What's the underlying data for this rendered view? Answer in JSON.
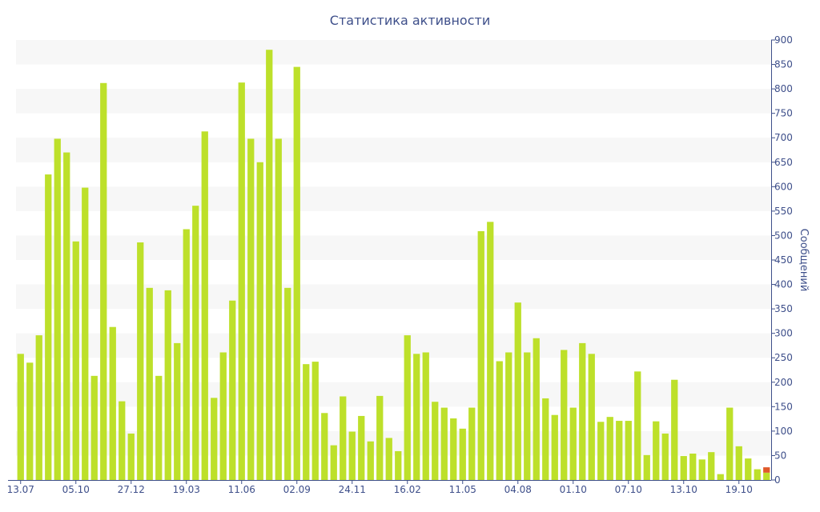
{
  "chart_data": {
    "type": "bar",
    "title": "Статистика активности",
    "ylabel": "Сообщений",
    "xlabel": "",
    "ylim": [
      0,
      900
    ],
    "y_ticks": [
      0,
      50,
      100,
      150,
      200,
      250,
      300,
      350,
      400,
      450,
      500,
      550,
      600,
      650,
      700,
      750,
      800,
      850,
      900
    ],
    "grid": "horizontal bands",
    "x_tick_labels": [
      {
        "index": 0,
        "label": "13.07"
      },
      {
        "index": 6,
        "label": "05.10"
      },
      {
        "index": 12,
        "label": "27.12"
      },
      {
        "index": 18,
        "label": "19.03"
      },
      {
        "index": 24,
        "label": "11.06"
      },
      {
        "index": 30,
        "label": "02.09"
      },
      {
        "index": 36,
        "label": "24.11"
      },
      {
        "index": 42,
        "label": "16.02"
      },
      {
        "index": 48,
        "label": "11.05"
      },
      {
        "index": 54,
        "label": "04.08"
      },
      {
        "index": 60,
        "label": "01.10"
      },
      {
        "index": 66,
        "label": "07.10"
      },
      {
        "index": 72,
        "label": "13.10"
      },
      {
        "index": 78,
        "label": "19.10"
      }
    ],
    "series": [
      {
        "color": "#bde02a",
        "values": [
          258,
          240,
          296,
          625,
          698,
          670,
          488,
          598,
          213,
          812,
          313,
          161,
          95,
          486,
          393,
          213,
          388,
          280,
          513,
          561,
          713,
          168,
          261,
          367,
          813,
          698,
          650,
          880,
          698,
          393,
          845,
          237,
          242,
          137,
          71,
          171,
          99,
          131,
          79,
          172,
          86,
          59,
          296,
          258,
          261,
          160,
          148,
          126,
          105,
          148,
          509,
          528,
          243,
          261,
          363,
          261,
          290,
          167,
          133,
          266,
          148,
          280,
          258,
          119,
          129,
          121,
          121,
          222,
          51,
          120,
          95,
          205,
          49,
          54,
          42,
          57,
          12,
          148,
          69,
          44,
          22,
          15
        ]
      },
      {
        "color": "#e05a2b",
        "values": [
          0,
          0,
          0,
          0,
          0,
          0,
          0,
          0,
          0,
          0,
          0,
          0,
          0,
          0,
          0,
          0,
          0,
          0,
          0,
          0,
          0,
          0,
          0,
          0,
          0,
          0,
          0,
          0,
          0,
          0,
          0,
          0,
          0,
          0,
          0,
          0,
          0,
          0,
          0,
          0,
          0,
          0,
          0,
          0,
          0,
          0,
          0,
          0,
          0,
          0,
          0,
          0,
          0,
          0,
          0,
          0,
          0,
          0,
          0,
          0,
          0,
          0,
          0,
          0,
          0,
          0,
          0,
          0,
          0,
          0,
          0,
          0,
          0,
          0,
          0,
          0,
          0,
          0,
          0,
          0,
          0,
          11
        ]
      }
    ],
    "colors": {
      "band": "#f7f7f7",
      "axis": "#3e4f8a"
    }
  }
}
